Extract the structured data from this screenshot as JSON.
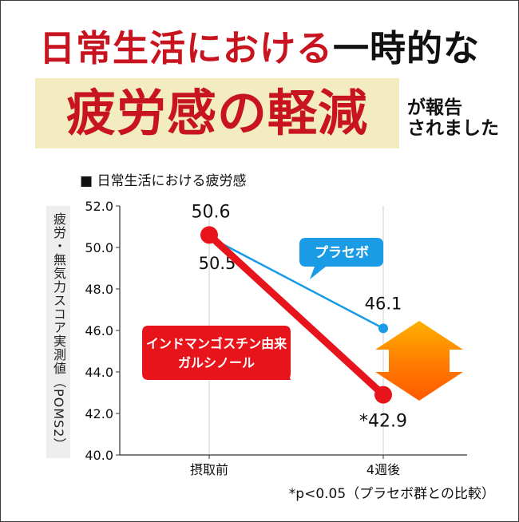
{
  "headline": {
    "line1_red": "日常生活における",
    "line1_black": "一時的な",
    "line2": "疲労感の軽減",
    "line3a": "が報告",
    "line3b": "されました"
  },
  "chart_data": {
    "type": "line",
    "title": "■ 日常生活における疲労感",
    "ylabel": "疲労・無気力スコア実測値（POMS2）",
    "categories": [
      "摂取前",
      "4週後"
    ],
    "ylim": [
      40.0,
      52.0
    ],
    "yticks": [
      "40.0",
      "42.0",
      "44.0",
      "46.0",
      "48.0",
      "50.0",
      "52.0"
    ],
    "series": [
      {
        "name": "プラセボ",
        "values": [
          50.5,
          46.1
        ],
        "color": "#1a9be6",
        "labels": [
          "50.5",
          "46.1"
        ]
      },
      {
        "name": "インドマンゴスチン由来ガルシノール",
        "values": [
          50.6,
          42.9
        ],
        "color": "#e8141c",
        "labels": [
          "50.6",
          "*42.9"
        ]
      }
    ],
    "legend_placebo": "プラセボ",
    "legend_test_line1": "インドマンゴスチン由来",
    "legend_test_line2": "ガルシノール",
    "annotation": "*p<0.05（プラセボ群との比較）"
  }
}
